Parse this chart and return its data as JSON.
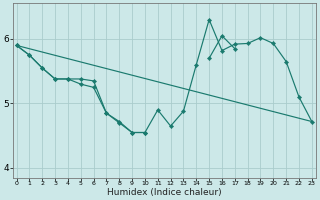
{
  "xlabel": "Humidex (Indice chaleur)",
  "x_values": [
    0,
    1,
    2,
    3,
    4,
    5,
    6,
    7,
    8,
    9,
    10,
    11,
    12,
    13,
    14,
    15,
    16,
    17,
    18,
    19,
    20,
    21,
    22,
    23
  ],
  "line1": [
    5.9,
    5.75,
    5.55,
    5.38,
    5.38,
    5.38,
    5.35,
    4.85,
    4.72,
    4.55,
    4.55,
    4.9,
    4.65,
    4.88,
    5.6,
    6.3,
    5.82,
    5.92,
    5.93,
    6.02,
    5.93,
    5.65,
    5.1,
    4.72
  ],
  "line2_x": [
    0,
    1,
    2,
    3,
    4,
    5,
    6,
    7,
    8,
    9,
    10,
    15,
    16,
    17
  ],
  "line2_y": [
    5.9,
    5.75,
    5.55,
    5.38,
    5.38,
    5.3,
    5.25,
    4.85,
    4.7,
    4.55,
    4.55,
    5.7,
    6.05,
    5.85
  ],
  "line3_x": [
    0,
    23
  ],
  "line3_y": [
    5.9,
    4.72
  ],
  "bg_color": "#cce8e8",
  "line_color": "#1a7a6e",
  "grid_color": "#aacccc",
  "ylim": [
    3.85,
    6.55
  ],
  "xlim": [
    -0.3,
    23.3
  ],
  "yticks": [
    4,
    5,
    6
  ],
  "xticks": [
    0,
    1,
    2,
    3,
    4,
    5,
    6,
    7,
    8,
    9,
    10,
    11,
    12,
    13,
    14,
    15,
    16,
    17,
    18,
    19,
    20,
    21,
    22,
    23
  ]
}
